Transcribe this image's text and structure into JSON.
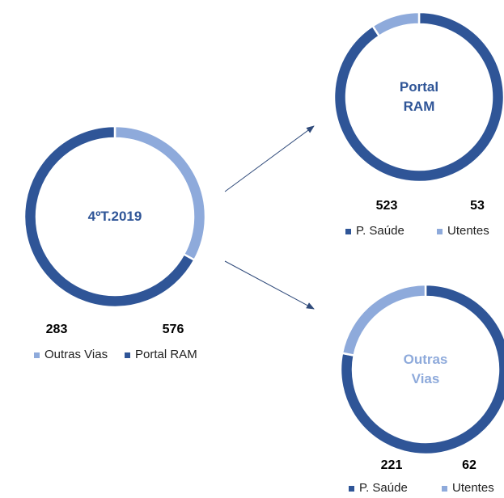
{
  "chart_data": [
    {
      "type": "pie",
      "title": "4ºT.2019",
      "title_color": "#2f5597",
      "categories": [
        "Outras Vias",
        "Portal RAM"
      ],
      "values": [
        283,
        576
      ],
      "colors": [
        "#8eaadb",
        "#2f5597"
      ]
    },
    {
      "type": "pie",
      "title": "Portal RAM",
      "title_color": "#2f5597",
      "categories": [
        "P. Saúde",
        "Utentes"
      ],
      "values": [
        523,
        53
      ],
      "colors": [
        "#2f5597",
        "#8eaadb"
      ]
    },
    {
      "type": "pie",
      "title": "Outras Vias",
      "title_color": "#8eaadb",
      "categories": [
        "P. Saúde",
        "Utentes"
      ],
      "values": [
        221,
        62
      ],
      "colors": [
        "#2f5597",
        "#8eaadb"
      ]
    }
  ]
}
